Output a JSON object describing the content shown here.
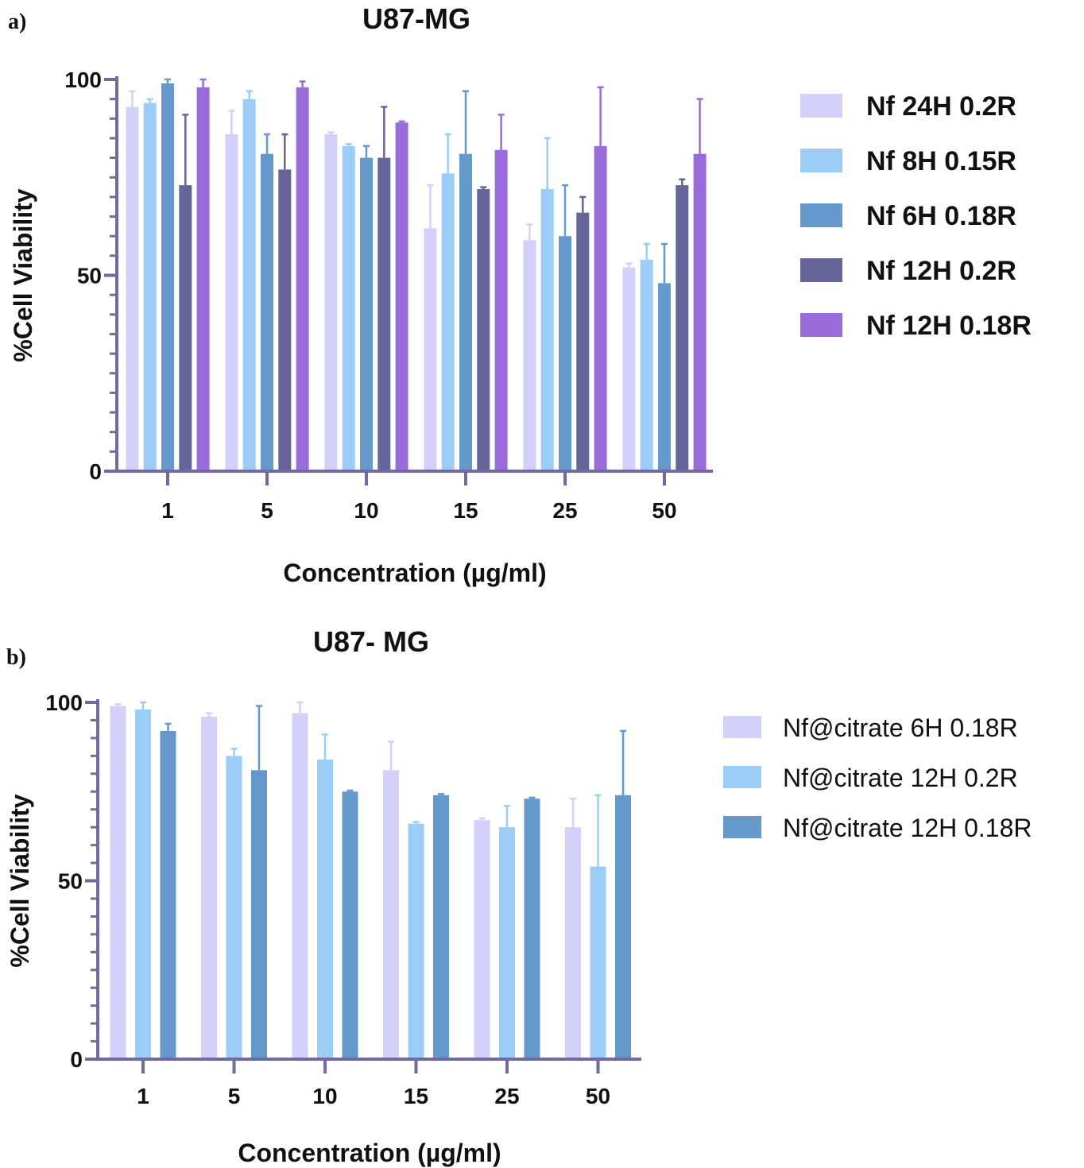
{
  "chart_data": [
    {
      "panel": "a)",
      "type": "bar",
      "title": "U87-MG",
      "xlabel": "Concentration (µg/ml)",
      "ylabel": "%Cell Viability",
      "ylim": [
        0,
        100
      ],
      "yticks": [
        0,
        50,
        100
      ],
      "categories": [
        "1",
        "5",
        "10",
        "15",
        "25",
        "50"
      ],
      "grid": false,
      "legend_position": "right",
      "series": [
        {
          "name": "Nf 24H 0.2R",
          "color": "#d3d0fa",
          "values": [
            93,
            86,
            86,
            62,
            59,
            52
          ],
          "error": [
            4,
            6,
            0.5,
            11,
            4,
            1
          ]
        },
        {
          "name": "Nf 8H 0.15R",
          "color": "#9ccdf7",
          "values": [
            94,
            95,
            83,
            76,
            72,
            54
          ],
          "error": [
            1,
            2,
            0.5,
            10,
            13,
            4
          ]
        },
        {
          "name": "Nf 6H 0.18R",
          "color": "#6599cb",
          "values": [
            99,
            81,
            80,
            81,
            60,
            48
          ],
          "error": [
            1,
            5,
            3,
            16,
            13,
            10
          ]
        },
        {
          "name": "Nf 12H 0.2R",
          "color": "#65659a",
          "values": [
            73,
            77,
            80,
            72,
            66,
            73
          ],
          "error": [
            18,
            9,
            13,
            0.5,
            4,
            1.5
          ]
        },
        {
          "name": "Nf 12H 0.18R",
          "color": "#9a6cdb",
          "values": [
            98,
            98,
            89,
            82,
            83,
            81
          ],
          "error": [
            2,
            1.5,
            0.3,
            9,
            15,
            14
          ]
        }
      ]
    },
    {
      "panel": "b)",
      "type": "bar",
      "title": "U87- MG",
      "xlabel": "Concentration (µg/ml)",
      "ylabel": "%Cell Viability",
      "ylim": [
        0,
        100
      ],
      "yticks": [
        0,
        50,
        100
      ],
      "categories": [
        "1",
        "5",
        "10",
        "15",
        "25",
        "50"
      ],
      "grid": false,
      "legend_position": "right",
      "series": [
        {
          "name": "Nf@citrate 6H 0.18R",
          "color": "#d3d0fa",
          "values": [
            99,
            96,
            97,
            81,
            67,
            65
          ],
          "error": [
            0.5,
            1,
            3,
            8,
            0.5,
            8
          ]
        },
        {
          "name": "Nf@citrate 12H 0.2R",
          "color": "#9ccdf7",
          "values": [
            98,
            85,
            84,
            66,
            65,
            54
          ],
          "error": [
            2,
            2,
            7,
            0.5,
            6,
            20
          ]
        },
        {
          "name": "Nf@citrate 12H 0.18R",
          "color": "#6599cb",
          "values": [
            92,
            81,
            75,
            74,
            73,
            74
          ],
          "error": [
            2,
            18,
            0.3,
            0.3,
            0.3,
            18
          ]
        }
      ]
    }
  ]
}
